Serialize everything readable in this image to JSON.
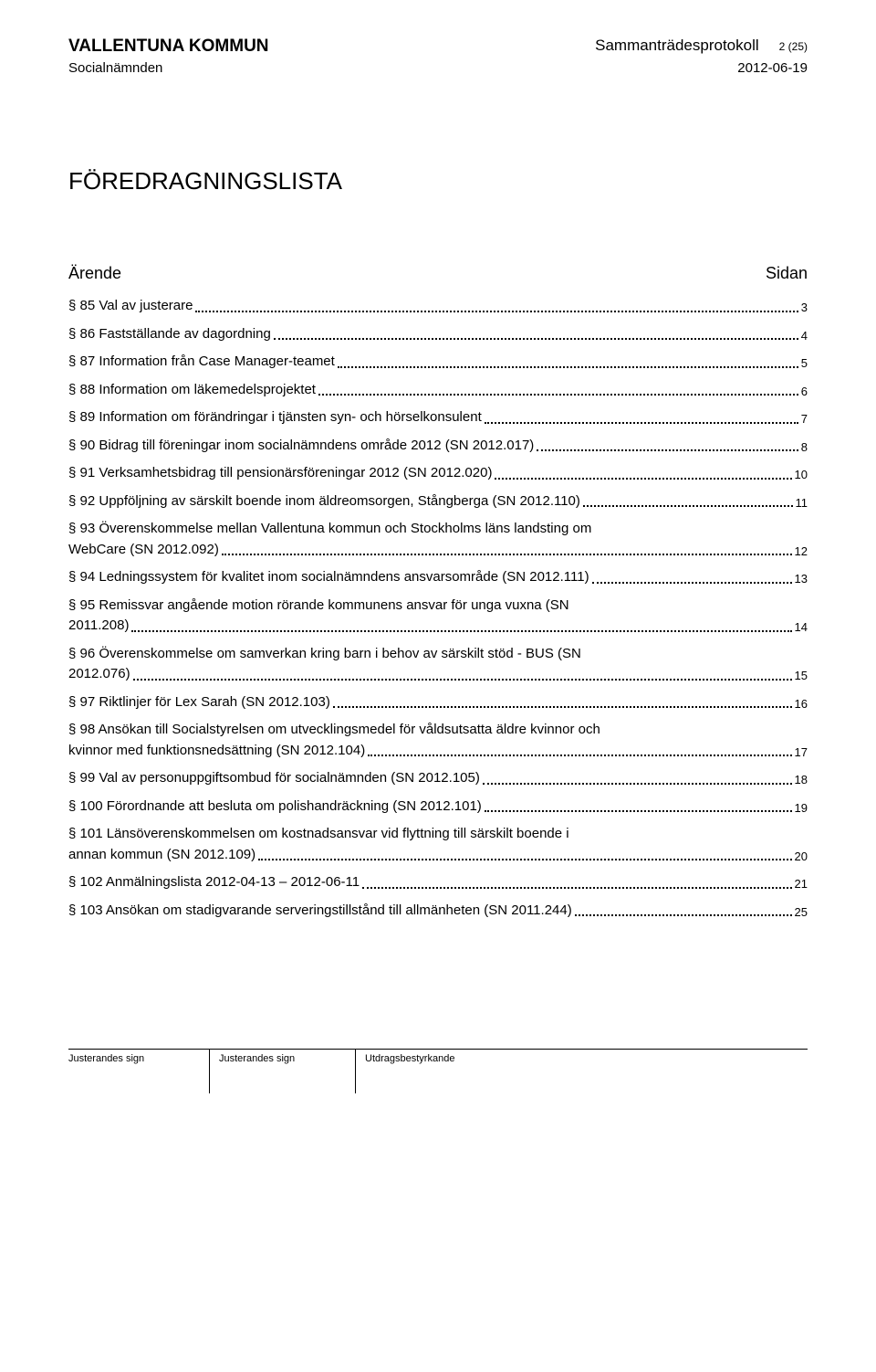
{
  "header": {
    "kommun": "VALLENTUNA KOMMUN",
    "doc_type": "Sammanträdesprotokoll",
    "page_indicator": "2 (25)",
    "department": "Socialnämnden",
    "date": "2012-06-19"
  },
  "title": "FÖREDRAGNINGSLISTA",
  "toc_header": {
    "left": "Ärende",
    "right": "Sidan"
  },
  "toc": [
    {
      "text": "§ 85 Val av justerare",
      "page": "3"
    },
    {
      "text": "§ 86 Fastställande av dagordning",
      "page": "4"
    },
    {
      "text": "§ 87 Information från Case Manager-teamet",
      "page": "5"
    },
    {
      "text": "§ 88 Information om läkemedelsprojektet",
      "page": "6"
    },
    {
      "text": "§ 89 Information om förändringar i tjänsten syn- och hörselkonsulent",
      "page": "7"
    },
    {
      "text": "§ 90 Bidrag till föreningar inom socialnämndens område 2012 (SN 2012.017)",
      "page": "8"
    },
    {
      "text": "§ 91 Verksamhetsbidrag till pensionärsföreningar 2012 (SN 2012.020)",
      "page": "10"
    },
    {
      "text1": "§ 92 Uppföljning av särskilt boende inom äldreomsorgen, Stångberga (SN 2012.110)",
      "page": "11",
      "multiline": false,
      "nodots": true
    },
    {
      "text1": "§ 93 Överenskommelse mellan Vallentuna kommun och Stockholms läns landsting om",
      "text2": "WebCare (SN 2012.092)",
      "page": "12",
      "multiline": true
    },
    {
      "text1": "§ 94 Ledningssystem för kvalitet inom socialnämndens ansvarsområde (SN 2012.111)",
      "page": "13",
      "multiline": false,
      "nodots": true
    },
    {
      "text1": "§ 95 Remissvar angående motion rörande kommunens ansvar för unga vuxna (SN",
      "text2": "2011.208)",
      "page": "14",
      "multiline": true
    },
    {
      "text1": "§ 96 Överenskommelse om samverkan kring barn i behov av särskilt stöd - BUS (SN",
      "text2": "2012.076)",
      "page": "15",
      "multiline": true
    },
    {
      "text": "§ 97 Riktlinjer för Lex Sarah (SN 2012.103)",
      "page": "16"
    },
    {
      "text1": "§ 98 Ansökan till Socialstyrelsen om utvecklingsmedel för våldsutsatta äldre kvinnor och",
      "text2": "kvinnor med funktionsnedsättning (SN 2012.104)",
      "page": "17",
      "multiline": true
    },
    {
      "text": "§ 99 Val av personuppgiftsombud för socialnämnden (SN 2012.105)",
      "page": "18"
    },
    {
      "text": "§ 100 Förordnande att besluta om polishandräckning (SN 2012.101)",
      "page": "19"
    },
    {
      "text1": "§ 101 Länsöverenskommelsen om kostnadsansvar vid flyttning till särskilt boende i",
      "text2": "annan kommun (SN 2012.109)",
      "page": "20",
      "multiline": true
    },
    {
      "text": "§ 102 Anmälningslista 2012-04-13 – 2012-06-11",
      "page": "21"
    },
    {
      "text1": "§ 103 Ansökan om stadigvarande serveringstillstånd till allmänheten (SN 2011.244)",
      "page": "25",
      "multiline": false,
      "nodots": true
    }
  ],
  "footer": {
    "cell1": "Justerandes sign",
    "cell2": "Justerandes sign",
    "cell3": "Utdragsbestyrkande"
  }
}
